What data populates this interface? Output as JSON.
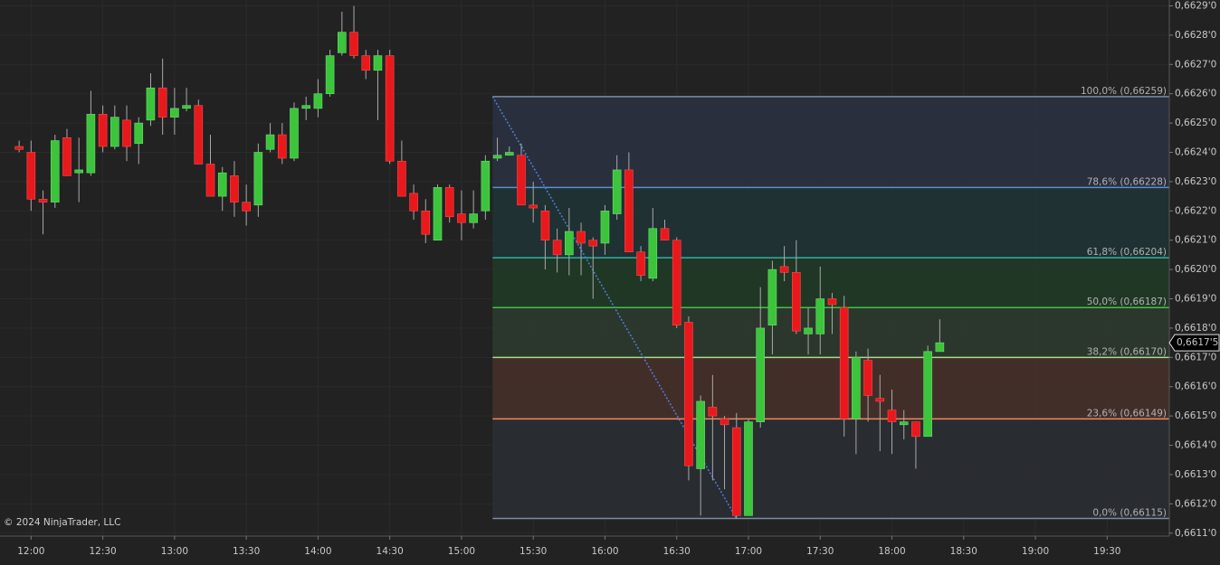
{
  "chart_data": {
    "type": "candlestick",
    "copyright": "© 2024 NinjaTrader, LLC",
    "up_color": "#3cc43c",
    "down_color": "#e8191c",
    "wick_color": "#a8a8a8",
    "grid": true,
    "x": [
      "11:55",
      "12:00",
      "12:05",
      "12:10",
      "12:15",
      "12:20",
      "12:25",
      "12:30",
      "12:35",
      "12:40",
      "12:45",
      "12:50",
      "12:55",
      "13:00",
      "13:05",
      "13:10",
      "13:15",
      "13:20",
      "13:25",
      "13:30",
      "13:35",
      "13:40",
      "13:45",
      "13:50",
      "13:55",
      "14:00",
      "14:05",
      "14:10",
      "14:15",
      "14:20",
      "14:25",
      "14:30",
      "14:35",
      "14:40",
      "14:45",
      "14:50",
      "14:55",
      "15:00",
      "15:05",
      "15:10",
      "15:15",
      "15:20",
      "15:25",
      "15:30",
      "15:35",
      "15:40",
      "15:45",
      "15:50",
      "15:55",
      "16:00",
      "16:05",
      "16:10",
      "16:15",
      "16:20",
      "16:25",
      "16:30",
      "16:35",
      "16:40",
      "16:45",
      "16:50",
      "16:55",
      "17:00",
      "17:05",
      "17:10",
      "17:15",
      "17:20",
      "17:25",
      "17:30",
      "17:35",
      "17:40",
      "17:45",
      "17:50",
      "17:55",
      "18:00",
      "18:05",
      "18:10",
      "18:15",
      "18:20"
    ],
    "open": [
      0.66242,
      0.6624,
      0.66224,
      0.66223,
      0.66245,
      0.66233,
      0.66233,
      0.66253,
      0.66242,
      0.66251,
      0.66243,
      0.66251,
      0.66262,
      0.66252,
      0.66255,
      0.66256,
      0.66236,
      0.66225,
      0.66232,
      0.66223,
      0.66222,
      0.66241,
      0.66246,
      0.66238,
      0.66255,
      0.66255,
      0.6626,
      0.66274,
      0.66281,
      0.66273,
      0.66268,
      0.66273,
      0.66237,
      0.66226,
      0.6622,
      0.6621,
      0.66228,
      0.66219,
      0.66216,
      0.6622,
      0.66238,
      0.66239,
      0.66239,
      0.66222,
      0.6622,
      0.6621,
      0.66205,
      0.66213,
      0.6621,
      0.66209,
      0.66219,
      0.66234,
      0.66206,
      0.66197,
      0.66214,
      0.6621,
      0.66182,
      0.66132,
      0.66153,
      0.66149,
      0.66146,
      0.66116,
      0.66148,
      0.66181,
      0.66201,
      0.66199,
      0.66178,
      0.66178,
      0.6619,
      0.66187,
      0.66149,
      0.66169,
      0.66156,
      0.66152,
      0.66147,
      0.66148,
      0.66143,
      0.66172
    ],
    "high": [
      0.66244,
      0.66244,
      0.66227,
      0.66246,
      0.66248,
      0.66245,
      0.66261,
      0.66256,
      0.66256,
      0.66256,
      0.66252,
      0.66267,
      0.66272,
      0.66262,
      0.66262,
      0.66258,
      0.66246,
      0.66235,
      0.66237,
      0.66229,
      0.66243,
      0.6625,
      0.6625,
      0.66257,
      0.66259,
      0.66265,
      0.66275,
      0.66288,
      0.6629,
      0.66275,
      0.66275,
      0.66275,
      0.66244,
      0.66229,
      0.66224,
      0.66229,
      0.66229,
      0.66227,
      0.66227,
      0.66239,
      0.66245,
      0.66242,
      0.66243,
      0.6623,
      0.66222,
      0.66214,
      0.66221,
      0.66216,
      0.66211,
      0.66222,
      0.66239,
      0.6624,
      0.66208,
      0.66221,
      0.66217,
      0.66211,
      0.66184,
      0.66157,
      0.66164,
      0.6615,
      0.66151,
      0.66149,
      0.66194,
      0.66203,
      0.66208,
      0.6621,
      0.66187,
      0.66201,
      0.66192,
      0.66191,
      0.66172,
      0.66173,
      0.66164,
      0.66159,
      0.66152,
      0.66148,
      0.66174,
      0.66183
    ],
    "low": [
      0.6624,
      0.6622,
      0.66212,
      0.66221,
      0.66232,
      0.66223,
      0.66232,
      0.6624,
      0.66241,
      0.66237,
      0.66236,
      0.66249,
      0.66246,
      0.66246,
      0.66254,
      0.66236,
      0.66225,
      0.6622,
      0.66218,
      0.66215,
      0.66218,
      0.6624,
      0.66236,
      0.66237,
      0.66251,
      0.66252,
      0.66259,
      0.66273,
      0.66272,
      0.66265,
      0.66251,
      0.66236,
      0.66225,
      0.66217,
      0.66209,
      0.6621,
      0.66216,
      0.6621,
      0.66214,
      0.66217,
      0.66237,
      0.66239,
      0.66222,
      0.66216,
      0.662,
      0.66199,
      0.66198,
      0.66198,
      0.6619,
      0.66205,
      0.66217,
      0.66206,
      0.66196,
      0.66196,
      0.6621,
      0.6618,
      0.66128,
      0.66116,
      0.66128,
      0.66125,
      0.66115,
      0.66116,
      0.66146,
      0.66171,
      0.66196,
      0.66178,
      0.66171,
      0.66171,
      0.66178,
      0.66143,
      0.66137,
      0.66148,
      0.66138,
      0.66137,
      0.66142,
      0.66132,
      0.66143,
      0.66172
    ],
    "close": [
      0.66241,
      0.66224,
      0.66223,
      0.66244,
      0.66232,
      0.66234,
      0.66253,
      0.66242,
      0.66252,
      0.66242,
      0.6625,
      0.66262,
      0.66252,
      0.66255,
      0.66256,
      0.66236,
      0.66225,
      0.66233,
      0.66223,
      0.6622,
      0.6624,
      0.66246,
      0.66238,
      0.66255,
      0.66256,
      0.6626,
      0.66273,
      0.66281,
      0.66273,
      0.66268,
      0.66273,
      0.66237,
      0.66225,
      0.6622,
      0.66212,
      0.66228,
      0.66218,
      0.66216,
      0.66219,
      0.66237,
      0.66239,
      0.6624,
      0.66222,
      0.66221,
      0.6621,
      0.66205,
      0.66213,
      0.66209,
      0.66208,
      0.6622,
      0.66234,
      0.66206,
      0.66198,
      0.66214,
      0.6621,
      0.66181,
      0.66133,
      0.66155,
      0.6615,
      0.66147,
      0.66116,
      0.66148,
      0.6618,
      0.662,
      0.66199,
      0.66179,
      0.6618,
      0.6619,
      0.66188,
      0.66149,
      0.6617,
      0.66157,
      0.66155,
      0.66148,
      0.66148,
      0.66143,
      0.66172,
      0.66175
    ],
    "last_price": {
      "value": 0.66175,
      "label": "0,6617'5"
    },
    "xlim": [
      "11:47",
      "19:56"
    ],
    "xticks": [
      "12:00",
      "12:30",
      "13:00",
      "13:30",
      "14:00",
      "14:30",
      "15:00",
      "15:30",
      "16:00",
      "16:30",
      "17:00",
      "17:30",
      "18:00",
      "18:30",
      "19:00",
      "19:30"
    ],
    "ylim": [
      0.66109,
      0.66292
    ],
    "yticks": [
      {
        "value": 0.6611,
        "label": "0,6611'0"
      },
      {
        "value": 0.6612,
        "label": "0,6612'0"
      },
      {
        "value": 0.6613,
        "label": "0,6613'0"
      },
      {
        "value": 0.6614,
        "label": "0,6614'0"
      },
      {
        "value": 0.6615,
        "label": "0,6615'0"
      },
      {
        "value": 0.6616,
        "label": "0,6616'0"
      },
      {
        "value": 0.6617,
        "label": "0,6617'0"
      },
      {
        "value": 0.6618,
        "label": "0,6618'0"
      },
      {
        "value": 0.6619,
        "label": "0,6619'0"
      },
      {
        "value": 0.662,
        "label": "0,6620'0"
      },
      {
        "value": 0.6621,
        "label": "0,6621'0"
      },
      {
        "value": 0.6622,
        "label": "0,6622'0"
      },
      {
        "value": 0.6623,
        "label": "0,6623'0"
      },
      {
        "value": 0.6624,
        "label": "0,6624'0"
      },
      {
        "value": 0.6625,
        "label": "0,6625'0"
      },
      {
        "value": 0.6626,
        "label": "0,6626'0"
      },
      {
        "value": 0.6627,
        "label": "0,6627'0"
      },
      {
        "value": 0.6628,
        "label": "0,6628'0"
      },
      {
        "value": 0.6629,
        "label": "0,6629'0"
      }
    ],
    "fibonacci": {
      "start": "15:13",
      "end": "16:55",
      "levels": [
        {
          "label": "100,0% (0,66259)",
          "value": 0.66259,
          "color": "#7d8ca3",
          "fill": "#2b3140"
        },
        {
          "label": "78,6% (0,66228)",
          "value": 0.66228,
          "color": "#5b8fd6",
          "fill": "#1f3334"
        },
        {
          "label": "61,8% (0,66204)",
          "value": 0.66204,
          "color": "#2fb0a6",
          "fill": "#213a26"
        },
        {
          "label": "50,0% (0,66187)",
          "value": 0.66187,
          "color": "#3fc43f",
          "fill": "#2c3a2d"
        },
        {
          "label": "38,2% (0,66170)",
          "value": 0.6617,
          "color": "#a6dc8e",
          "fill": "#46302a"
        },
        {
          "label": "23,6% (0,66149)",
          "value": 0.66149,
          "color": "#f08a5d",
          "fill": "#2a2d33"
        },
        {
          "label": "0,0% (0,66115)",
          "value": 0.66115,
          "color": "#7d8ca3"
        }
      ]
    }
  }
}
